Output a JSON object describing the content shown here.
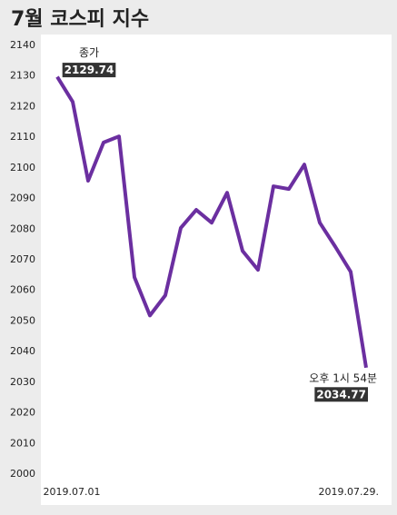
{
  "chart_data": {
    "type": "line",
    "title": "7월 코스피 지수",
    "categories": [
      "2019.07.01",
      null,
      null,
      null,
      null,
      null,
      null,
      null,
      null,
      null,
      null,
      null,
      null,
      null,
      null,
      null,
      null,
      null,
      null,
      null,
      "2019.07.29."
    ],
    "series": [
      {
        "color": "#6b2fa0",
        "values": [
          2129.74,
          2121.6,
          2095.8,
          2108.3,
          2110.3,
          2064.3,
          2051.8,
          2058.4,
          2080.4,
          2086.3,
          2082.1,
          2091.9,
          2072.9,
          2066.7,
          2094.0,
          2093.1,
          2101.1,
          2082.1,
          2074.3,
          2066.1,
          2034.77
        ]
      }
    ],
    "ylim": [
      2000,
      2140
    ],
    "yticks": [
      2000,
      2010,
      2020,
      2030,
      2040,
      2050,
      2060,
      2070,
      2080,
      2090,
      2100,
      2110,
      2120,
      2130,
      2140
    ],
    "annotations": [
      {
        "text": "종가",
        "value": "2129.74"
      },
      {
        "text": "오후 1시 54분",
        "value": "2034.77"
      }
    ]
  }
}
